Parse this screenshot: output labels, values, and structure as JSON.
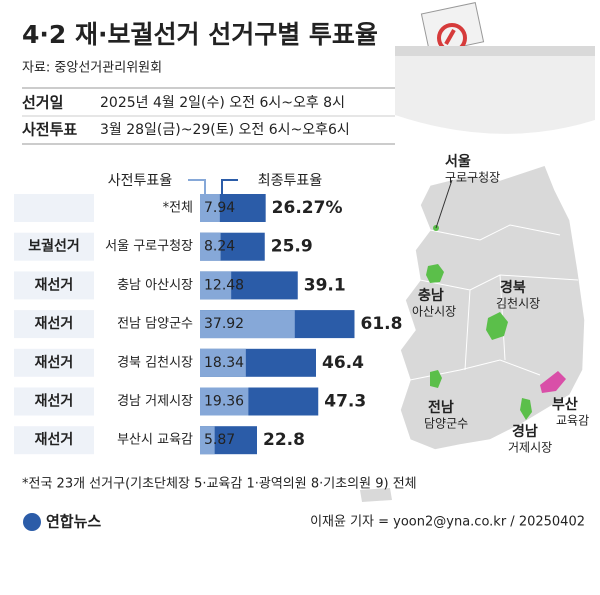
{
  "header": {
    "title": "4·2 재·보궐선거 선거구별 투표율",
    "source": "자료: 중앙선거관리위원회"
  },
  "info": [
    {
      "label": "선거일",
      "text": "2025년 4월 2일(수) 오전 6시~오후 8시"
    },
    {
      "label": "사전투표",
      "text": "3월 28일(금)~29(토) 오전 6시~오후6시"
    }
  ],
  "chart_data": {
    "type": "bar",
    "categories": [
      "*전체",
      "서울 구로구청장",
      "충남 아산시장",
      "전남 담양군수",
      "경북 김천시장",
      "경남 거제시장",
      "부산시 교육감"
    ],
    "election_types": [
      null,
      "보궐선거",
      "재선거",
      "재선거",
      "재선거",
      "재선거",
      "재선거"
    ],
    "series": [
      {
        "name": "최종투표율",
        "color": "#2b5ca8",
        "values": [
          26.27,
          25.9,
          39.1,
          61.8,
          46.4,
          47.3,
          22.8
        ],
        "value_labels": [
          "26.27%",
          "25.9",
          "39.1",
          "61.8",
          "46.4",
          "47.3",
          "22.8"
        ]
      },
      {
        "name": "사전투표율",
        "color": "#86a8d8",
        "values": [
          7.94,
          8.24,
          12.48,
          37.92,
          18.34,
          19.36,
          5.87
        ]
      }
    ]
  },
  "map_labels": [
    {
      "region": "서울",
      "office": "구로구청장"
    },
    {
      "region": "충남",
      "office": "아산시장"
    },
    {
      "region": "경북",
      "office": "김천시장"
    },
    {
      "region": "전남",
      "office": "담양군수"
    },
    {
      "region": "부산",
      "office": "교육감"
    },
    {
      "region": "경남",
      "office": "거제시장"
    }
  ],
  "footnote": "*전국 23개 선거구(기초단체장 5·교육감 1·광역의원 8·기초의원 9) 전체",
  "logo": "연합뉴스",
  "credit": "이재윤 기자 = yoon2@yna.co.kr / 20250402"
}
